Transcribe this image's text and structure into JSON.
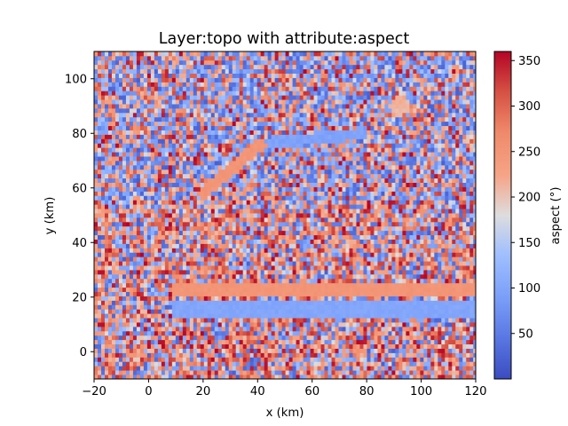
{
  "chart_data": {
    "type": "heatmap",
    "title": "Layer:topo with attribute:aspect",
    "xlabel": "x (km)",
    "ylabel": "y (km)",
    "xlim": [
      -20,
      120
    ],
    "ylim": [
      -10,
      110
    ],
    "x_ticks": [
      "−20",
      "0",
      "20",
      "40",
      "60",
      "80",
      "100",
      "120"
    ],
    "x_tick_values": [
      -20,
      0,
      20,
      40,
      60,
      80,
      100,
      120
    ],
    "y_ticks": [
      "0",
      "20",
      "40",
      "60",
      "80",
      "100"
    ],
    "y_tick_values": [
      0,
      20,
      40,
      60,
      80,
      100
    ],
    "colorbar": {
      "label": "aspect (°)",
      "range": [
        0,
        360
      ],
      "ticks": [
        "50",
        "100",
        "150",
        "200",
        "250",
        "300",
        "350"
      ],
      "tick_values": [
        50,
        100,
        150,
        200,
        250,
        300,
        350
      ],
      "colormap": "coolwarm"
    },
    "grid": false,
    "features": [
      {
        "kind": "ridge",
        "aspect": 95,
        "from": [
          40,
          76
        ],
        "to": [
          78,
          80
        ]
      },
      {
        "kind": "ridge",
        "aspect": 250,
        "from": [
          20,
          58
        ],
        "to": [
          41,
          76
        ]
      },
      {
        "kind": "channel",
        "aspect": 250,
        "x_range": [
          8,
          120
        ],
        "y_range": [
          21,
          26
        ]
      },
      {
        "kind": "channel",
        "aspect": 100,
        "x_range": [
          8,
          120
        ],
        "y_range": [
          12,
          18
        ]
      },
      {
        "kind": "patch",
        "aspect": 210,
        "center": [
          92,
          90
        ]
      }
    ]
  }
}
